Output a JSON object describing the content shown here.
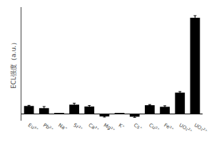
{
  "chart_data": {
    "type": "bar",
    "categories": [
      "Eu³⁺",
      "Pb²⁺",
      "Na⁺",
      "Sr²⁺",
      "Ca²⁺",
      "Mg²⁺",
      "K⁺",
      "Cs⁺",
      "Cu²⁺",
      "Fe³⁺",
      "UO₂²⁺",
      "UO₂²⁺"
    ],
    "values": [
      0.3,
      0.22,
      0.02,
      0.35,
      0.28,
      -0.09,
      0.02,
      -0.1,
      0.33,
      0.27,
      0.8,
      3.6
    ],
    "errors": [
      0.025,
      0.06,
      0.005,
      0.055,
      0.04,
      0.025,
      0.005,
      0.025,
      0.025,
      0.04,
      0.04,
      0.08
    ],
    "color": "#000000",
    "ylabel": "ECL强度（a.u.）",
    "ylim": [
      -0.25,
      4.0
    ],
    "grid": false,
    "tick_labels": "x"
  }
}
